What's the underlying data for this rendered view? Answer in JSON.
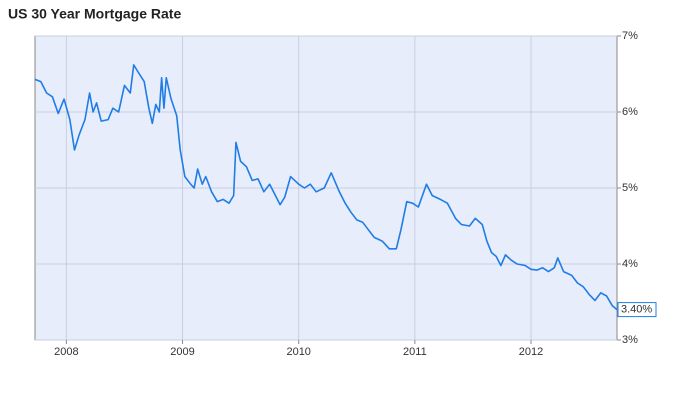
{
  "chart_data": {
    "type": "line",
    "title": "US 30 Year Mortgage Rate",
    "x": [
      2007.73,
      2007.78,
      2007.83,
      2007.88,
      2007.93,
      2007.98,
      2008.03,
      2008.07,
      2008.11,
      2008.16,
      2008.2,
      2008.23,
      2008.26,
      2008.3,
      2008.36,
      2008.4,
      2008.45,
      2008.5,
      2008.55,
      2008.58,
      2008.62,
      2008.67,
      2008.71,
      2008.74,
      2008.77,
      2008.8,
      2008.82,
      2008.84,
      2008.86,
      2008.9,
      2008.95,
      2008.98,
      2009.02,
      2009.07,
      2009.1,
      2009.13,
      2009.17,
      2009.2,
      2009.25,
      2009.3,
      2009.35,
      2009.4,
      2009.44,
      2009.46,
      2009.5,
      2009.55,
      2009.6,
      2009.65,
      2009.7,
      2009.75,
      2009.8,
      2009.84,
      2009.88,
      2009.93,
      2010.0,
      2010.05,
      2010.1,
      2010.15,
      2010.22,
      2010.28,
      2010.35,
      2010.4,
      2010.45,
      2010.5,
      2010.55,
      2010.6,
      2010.65,
      2010.72,
      2010.78,
      2010.84,
      2010.88,
      2010.93,
      2010.98,
      2011.03,
      2011.1,
      2011.15,
      2011.22,
      2011.28,
      2011.35,
      2011.4,
      2011.47,
      2011.52,
      2011.58,
      2011.62,
      2011.66,
      2011.7,
      2011.74,
      2011.78,
      2011.83,
      2011.88,
      2011.95,
      2012.0,
      2012.05,
      2012.1,
      2012.15,
      2012.2,
      2012.23,
      2012.28,
      2012.35,
      2012.4,
      2012.45,
      2012.5,
      2012.55,
      2012.6,
      2012.65,
      2012.7,
      2012.74
    ],
    "series": [
      {
        "name": "US 30 Year Mortgage Rate",
        "color": "#1f7de6",
        "values": [
          6.43,
          6.4,
          6.25,
          6.2,
          5.98,
          6.17,
          5.9,
          5.5,
          5.7,
          5.9,
          6.25,
          6.0,
          6.12,
          5.88,
          5.9,
          6.05,
          6.0,
          6.35,
          6.25,
          6.62,
          6.52,
          6.4,
          6.05,
          5.85,
          6.1,
          6.0,
          6.45,
          6.05,
          6.45,
          6.18,
          5.95,
          5.5,
          5.15,
          5.05,
          5.0,
          5.25,
          5.05,
          5.15,
          4.95,
          4.82,
          4.85,
          4.8,
          4.9,
          5.6,
          5.35,
          5.28,
          5.1,
          5.12,
          4.95,
          5.05,
          4.9,
          4.78,
          4.88,
          5.15,
          5.05,
          5.0,
          5.05,
          4.95,
          5.0,
          5.2,
          4.95,
          4.8,
          4.68,
          4.58,
          4.55,
          4.45,
          4.35,
          4.3,
          4.2,
          4.2,
          4.45,
          4.82,
          4.8,
          4.75,
          5.05,
          4.9,
          4.85,
          4.8,
          4.6,
          4.52,
          4.5,
          4.6,
          4.52,
          4.3,
          4.15,
          4.1,
          3.98,
          4.12,
          4.05,
          4.0,
          3.98,
          3.93,
          3.92,
          3.95,
          3.9,
          3.95,
          4.08,
          3.9,
          3.85,
          3.75,
          3.7,
          3.6,
          3.52,
          3.62,
          3.58,
          3.45,
          3.4
        ],
        "value_labels": [
          null,
          null,
          null,
          null,
          null,
          null,
          null,
          null,
          null,
          null,
          null,
          null,
          null,
          null,
          null,
          null,
          null,
          null,
          null,
          null,
          null,
          null,
          null,
          null,
          null,
          null,
          null,
          null,
          null,
          null,
          null,
          null,
          null,
          null,
          null,
          null,
          null,
          null,
          null,
          null,
          null,
          null,
          null,
          null,
          null,
          null,
          null,
          null,
          null,
          null,
          null,
          null,
          null,
          null,
          null,
          null,
          null,
          null,
          null,
          null,
          null,
          null,
          null,
          null,
          null,
          null,
          null,
          null,
          null,
          null,
          null,
          null,
          null,
          null,
          null,
          null,
          null,
          null,
          null,
          null,
          null,
          null,
          null,
          null,
          null,
          null,
          null,
          null,
          null,
          null,
          null,
          null,
          null,
          null,
          null,
          null,
          null,
          null,
          null,
          null,
          null,
          null,
          null,
          null,
          null,
          null,
          "3.40%"
        ]
      }
    ],
    "xlim": [
      2007.73,
      2012.74
    ],
    "xticks": [
      2008,
      2009,
      2010,
      2011,
      2012
    ],
    "ylim": [
      3,
      7
    ],
    "yticks": [
      {
        "value": 3,
        "label": "3%"
      },
      {
        "value": 4,
        "label": "4%"
      },
      {
        "value": 5,
        "label": "5%"
      },
      {
        "value": 6,
        "label": "6%"
      },
      {
        "value": 7,
        "label": "7%"
      }
    ],
    "grid": true
  }
}
